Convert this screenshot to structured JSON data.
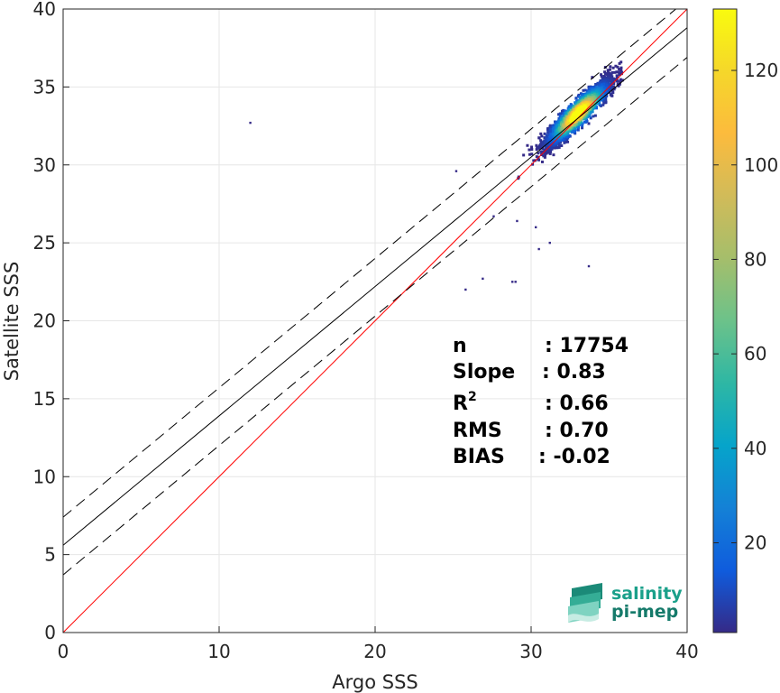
{
  "chart_data": {
    "type": "scatter",
    "subtype": "density-scatter",
    "xlabel": "Argo SSS",
    "ylabel": "Satellite SSS",
    "xlim": [
      0,
      40
    ],
    "ylim": [
      0,
      40
    ],
    "xticks": [
      0,
      10,
      20,
      30,
      40
    ],
    "yticks": [
      0,
      5,
      10,
      15,
      20,
      25,
      30,
      35,
      40
    ],
    "grid": true,
    "colorbar": {
      "colormap": "parula",
      "range": [
        1,
        133
      ],
      "ticks": [
        20,
        40,
        60,
        80,
        100,
        120
      ]
    },
    "lines": [
      {
        "kind": "identity",
        "color": "#ff0000",
        "style": "solid",
        "x": [
          0,
          40
        ],
        "y": [
          0,
          40
        ]
      },
      {
        "kind": "regression",
        "color": "#000000",
        "style": "solid",
        "x": [
          0,
          40
        ],
        "y": [
          5.6,
          38.8
        ]
      },
      {
        "kind": "regression-upper",
        "color": "#000000",
        "style": "dashed",
        "x": [
          0,
          40
        ],
        "y": [
          7.4,
          40.6
        ]
      },
      {
        "kind": "regression-lower",
        "color": "#000000",
        "style": "dashed",
        "x": [
          0,
          40
        ],
        "y": [
          3.7,
          36.9
        ]
      }
    ],
    "density_core": {
      "x_center": 33.0,
      "y_center": 33.3,
      "x_range": [
        28.5,
        35.9
      ],
      "y_range": [
        26.0,
        37.2
      ],
      "peak": 133
    },
    "outliers": [
      [
        12.0,
        32.7
      ],
      [
        25.8,
        22.0
      ],
      [
        26.9,
        22.7
      ],
      [
        28.8,
        22.5
      ],
      [
        29.0,
        22.5
      ],
      [
        33.7,
        23.5
      ],
      [
        25.2,
        29.6
      ],
      [
        30.3,
        26.0
      ],
      [
        31.2,
        25.0
      ],
      [
        29.1,
        26.4
      ],
      [
        30.5,
        24.6
      ],
      [
        27.6,
        26.7
      ]
    ],
    "stats": [
      {
        "label": "n",
        "value": ": 17754"
      },
      {
        "label": "Slope",
        "value": ": 0.83"
      },
      {
        "label": "R",
        "sup": "2",
        "value": ": 0.66"
      },
      {
        "label": "RMS",
        "value": ": 0.70"
      },
      {
        "label": "BIAS",
        "value": ": -0.02"
      }
    ]
  },
  "logo": {
    "line1": "salinity",
    "line2": "pi-mep",
    "color": "#1aa08a"
  }
}
